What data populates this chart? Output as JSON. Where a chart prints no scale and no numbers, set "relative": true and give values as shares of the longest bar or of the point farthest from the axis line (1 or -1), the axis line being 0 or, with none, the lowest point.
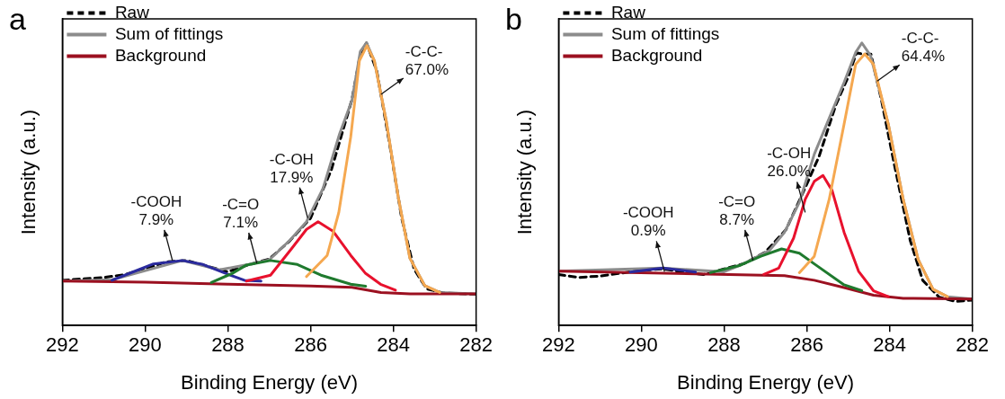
{
  "chart_data": [
    {
      "type": "line",
      "title": "a",
      "xlabel": "Binding Energy (eV)",
      "ylabel": "Intensity (a.u.)",
      "relative": true,
      "xlim": [
        292,
        282
      ],
      "xticks": [
        292,
        290,
        288,
        286,
        284,
        282
      ],
      "tick_labels": "x",
      "legend": "top left",
      "marker": "none",
      "series": [
        {
          "name": "Raw",
          "color": "#000000",
          "line_style": "dashed",
          "x": [
            292,
            291.5,
            291,
            290.5,
            290,
            289.5,
            289,
            288.5,
            288,
            287.5,
            287,
            286.5,
            286,
            285.5,
            285,
            284.8,
            284.65,
            284.4,
            284.1,
            283.8,
            283.5,
            283.2,
            282.8,
            282
          ],
          "values": [
            0.16,
            0.165,
            0.17,
            0.18,
            0.2,
            0.225,
            0.23,
            0.21,
            0.19,
            0.215,
            0.235,
            0.3,
            0.38,
            0.55,
            0.8,
            0.96,
            1.0,
            0.9,
            0.65,
            0.38,
            0.2,
            0.13,
            0.115,
            0.11
          ]
        },
        {
          "name": "Sum of fittings",
          "color": "#8c8c8c",
          "x": [
            292,
            290.8,
            289.1,
            288.2,
            287.5,
            287.0,
            286.5,
            286.1,
            285.7,
            285.3,
            285.0,
            284.8,
            284.65,
            284.46,
            284.17,
            283.88,
            283.6,
            283.24,
            282.88,
            282
          ],
          "values": [
            0.157,
            0.162,
            0.23,
            0.197,
            0.216,
            0.232,
            0.302,
            0.367,
            0.485,
            0.678,
            0.797,
            0.969,
            1.0,
            0.937,
            0.722,
            0.453,
            0.238,
            0.141,
            0.117,
            0.112
          ]
        },
        {
          "name": "Background",
          "color": "#9b1020",
          "x": [
            292,
            290,
            288,
            286,
            285,
            284.3,
            283.6,
            282
          ],
          "values": [
            0.157,
            0.153,
            0.146,
            0.14,
            0.135,
            0.117,
            0.112,
            0.112
          ]
        },
        {
          "color": "#2b2b9e",
          "x": [
            290.8,
            290.3,
            289.8,
            289.1,
            288.6,
            288.1,
            287.6,
            287.2
          ],
          "values": [
            0.16,
            0.189,
            0.218,
            0.23,
            0.216,
            0.187,
            0.16,
            0.157
          ]
        },
        {
          "color": "#1f7a2e",
          "x": [
            288.4,
            287.9,
            287.55,
            286.97,
            286.32,
            285.75,
            285.03,
            284.67
          ],
          "values": [
            0.152,
            0.184,
            0.214,
            0.23,
            0.216,
            0.178,
            0.146,
            0.139
          ]
        },
        {
          "color": "#e8112d",
          "x": [
            287.55,
            286.97,
            286.47,
            286.1,
            285.82,
            285.46,
            285.03,
            284.67,
            284.31,
            283.95
          ],
          "values": [
            0.157,
            0.178,
            0.27,
            0.34,
            0.367,
            0.334,
            0.248,
            0.184,
            0.146,
            0.125
          ]
        },
        {
          "color": "#f5a850",
          "x": [
            286.1,
            285.6,
            285.32,
            285.03,
            284.82,
            284.64,
            284.46,
            284.17,
            283.88,
            283.6,
            283.24,
            282.88
          ],
          "values": [
            0.173,
            0.248,
            0.399,
            0.668,
            0.937,
            0.99,
            0.937,
            0.722,
            0.453,
            0.238,
            0.141,
            0.117
          ]
        }
      ],
      "annotations": [
        {
          "text": "-C-C-\n67.0%",
          "x": 284.3,
          "y": 0.818
        },
        {
          "text": "-C-OH\n17.9%",
          "x": 286.07,
          "y": 0.38
        },
        {
          "text": "-C=O\n7.1%",
          "x": 287.3,
          "y": 0.22
        },
        {
          "text": "-COOH\n7.9%",
          "x": 289.34,
          "y": 0.23
        }
      ]
    },
    {
      "type": "line",
      "title": "b",
      "xlabel": "Binding Energy (eV)",
      "ylabel": "Intensity (a.u.)",
      "relative": true,
      "xlim": [
        292,
        282
      ],
      "xticks": [
        292,
        290,
        288,
        286,
        284,
        282
      ],
      "tick_labels": "x",
      "legend": "top left",
      "marker": "none",
      "series": [
        {
          "name": "Raw",
          "color": "#000000",
          "line_style": "dashed",
          "x": [
            292,
            291.5,
            291,
            290.5,
            290,
            289.5,
            289,
            288.5,
            288,
            287.5,
            287,
            286.5,
            286,
            285.7,
            285.3,
            285,
            284.8,
            284.65,
            284.45,
            284.2,
            283.9,
            283.5,
            283.2,
            282.8,
            282.4,
            282
          ],
          "values": [
            0.18,
            0.17,
            0.175,
            0.185,
            0.195,
            0.2,
            0.19,
            0.18,
            0.2,
            0.22,
            0.26,
            0.34,
            0.5,
            0.6,
            0.78,
            0.88,
            0.965,
            0.96,
            0.96,
            0.8,
            0.58,
            0.3,
            0.16,
            0.1,
            0.085,
            0.09
          ]
        },
        {
          "name": "Sum of fittings",
          "color": "#8c8c8c",
          "x": [
            292,
            289.5,
            288,
            287.61,
            286.9,
            286.54,
            286.18,
            285.82,
            285.46,
            285.1,
            284.82,
            284.67,
            284.46,
            284.03,
            283.67,
            283.31,
            282.95,
            282.6,
            282
          ],
          "values": [
            0.192,
            0.203,
            0.19,
            0.213,
            0.266,
            0.33,
            0.436,
            0.606,
            0.733,
            0.86,
            0.966,
            1.0,
            0.955,
            0.712,
            0.446,
            0.234,
            0.128,
            0.102,
            0.094
          ]
        },
        {
          "name": "Background",
          "color": "#9b1020",
          "x": [
            292,
            288.69,
            286.54,
            285.82,
            285.1,
            284.39,
            283.67,
            282
          ],
          "values": [
            0.192,
            0.183,
            0.176,
            0.16,
            0.134,
            0.107,
            0.096,
            0.094
          ]
        },
        {
          "color": "#2b2b9e",
          "x": [
            290.27,
            289.48,
            288.69
          ],
          "values": [
            0.189,
            0.203,
            0.189
          ]
        },
        {
          "color": "#1f7a2e",
          "x": [
            288.33,
            287.61,
            287.11,
            286.61,
            286.18,
            285.82,
            285.1,
            284.67
          ],
          "values": [
            0.187,
            0.213,
            0.245,
            0.271,
            0.256,
            0.218,
            0.144,
            0.123
          ]
        },
        {
          "color": "#e8112d",
          "x": [
            287.04,
            286.68,
            286.32,
            286.04,
            285.82,
            285.61,
            285.39,
            285.1,
            284.75,
            284.39,
            284.03
          ],
          "values": [
            0.181,
            0.203,
            0.309,
            0.446,
            0.51,
            0.531,
            0.478,
            0.33,
            0.192,
            0.123,
            0.102
          ]
        },
        {
          "color": "#f5a850",
          "x": [
            286.18,
            285.82,
            285.46,
            285.1,
            284.82,
            284.6,
            284.39,
            284.03,
            283.67,
            283.31,
            282.95,
            282.6
          ],
          "values": [
            0.187,
            0.245,
            0.446,
            0.712,
            0.924,
            0.961,
            0.924,
            0.712,
            0.446,
            0.234,
            0.128,
            0.102
          ]
        }
      ],
      "annotations": [
        {
          "text": "-C-C-\n64.4%",
          "x": 284.3,
          "y": 0.865
        },
        {
          "text": "-C-OH\n26.0%",
          "x": 286.04,
          "y": 0.4
        },
        {
          "text": "-C=O\n8.7%",
          "x": 287.3,
          "y": 0.23
        },
        {
          "text": "-COOH\n0.9%",
          "x": 289.44,
          "y": 0.19
        }
      ]
    }
  ]
}
